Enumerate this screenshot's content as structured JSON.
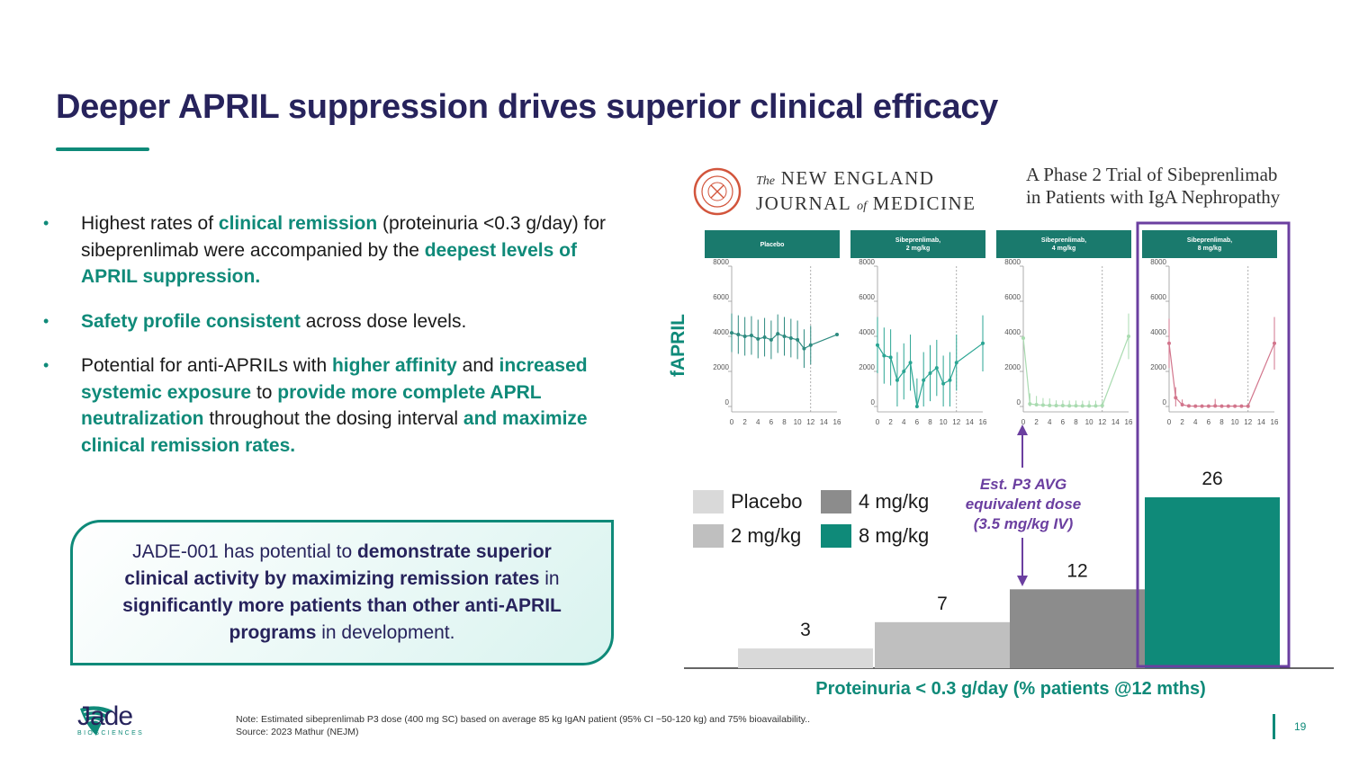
{
  "slide": {
    "title": "Deeper APRIL suppression drives superior clinical efficacy",
    "page_number": "19"
  },
  "bullets": [
    [
      {
        "t": "Highest rates of ",
        "hl": false
      },
      {
        "t": "clinical remission",
        "hl": true
      },
      {
        "t": " (proteinuria <0.3 g/day) for sibeprenlimab were accompanied by the ",
        "hl": false
      },
      {
        "t": "deepest levels of APRIL suppression.",
        "hl": true
      }
    ],
    [
      {
        "t": "Safety profile consistent",
        "hl": true
      },
      {
        "t": " across dose levels.",
        "hl": false
      }
    ],
    [
      {
        "t": "Potential for anti-APRILs with ",
        "hl": false
      },
      {
        "t": "higher affinity",
        "hl": true
      },
      {
        "t": " and ",
        "hl": false
      },
      {
        "t": "increased systemic exposure",
        "hl": true
      },
      {
        "t": " to ",
        "hl": false
      },
      {
        "t": "provide more complete APRL neutralization",
        "hl": true
      },
      {
        "t": " throughout the dosing interval ",
        "hl": false
      },
      {
        "t": "and maximize clinical remission rates.",
        "hl": true
      }
    ]
  ],
  "callout": [
    {
      "t": "JADE-001 has potential to ",
      "b": false
    },
    {
      "t": "demonstrate superior clinical activity by maximizing remission rates",
      "b": true
    },
    {
      "t": " in ",
      "b": false
    },
    {
      "t": "significantly more patients than other anti-APRIL programs",
      "b": true
    },
    {
      "t": " in development.",
      "b": false
    }
  ],
  "nejm": {
    "line1_prefix": "The",
    "line1": "NEW ENGLAND",
    "line2a": "JOURNAL",
    "line2_of": "of",
    "line2b": "MEDICINE",
    "trial_line1": "A Phase 2 Trial of Sibeprenlimab",
    "trial_line2": "in Patients with IgA Nephropathy"
  },
  "fapril_label": "fAPRIL",
  "arrow_label": [
    "Est. P3 AVG",
    "equivalent dose",
    "(3.5 mg/kg IV)"
  ],
  "footer": {
    "note_line1": "Note: Estimated sibeprenlimab P3 dose (400 mg SC) based on average 85 kg IgAN patient (95% CI ~50-120 kg) and 75% bioavailability..",
    "note_line2": "Source: 2023 Mathur (NEJM)",
    "logo_word": "Jade",
    "logo_sub": "BIOSCIENCES"
  },
  "colors": {
    "navy": "#27235c",
    "teal": "#0f8a79",
    "purple": "#6b3fa0",
    "placebo": "#d9d9d9",
    "dose2": "#bfbfbf",
    "dose4": "#8c8c8c",
    "dose8": "#0f8a79"
  },
  "chart_data": [
    {
      "type": "line",
      "panels": [
        {
          "name": "Placebo",
          "color": "#2e8b80",
          "x": [
            0,
            1,
            2,
            3,
            4,
            5,
            6,
            7,
            8,
            9,
            10,
            11,
            12,
            16
          ],
          "y": [
            4200,
            4100,
            4000,
            4050,
            3850,
            3950,
            3800,
            4150,
            4000,
            3900,
            3800,
            3300,
            3500,
            4100
          ],
          "err": [
            1100,
            1100,
            1100,
            1100,
            1100,
            1100,
            1100,
            1100,
            1100,
            1100,
            1100,
            1100,
            1100,
            0
          ]
        },
        {
          "name": "Sibeprenlimab, 2 mg/kg",
          "color": "#2aa593",
          "x": [
            0,
            1,
            2,
            3,
            4,
            5,
            6,
            7,
            8,
            9,
            10,
            11,
            12,
            16
          ],
          "y": [
            3500,
            2900,
            2800,
            1500,
            2000,
            2500,
            0,
            1500,
            1900,
            2200,
            1300,
            1500,
            2500,
            3600
          ],
          "err": [
            1600,
            1600,
            1600,
            1600,
            1600,
            1600,
            1600,
            1600,
            1600,
            1600,
            1600,
            1600,
            1600,
            1600
          ]
        },
        {
          "name": "Sibeprenlimab, 4 mg/kg",
          "color": "#a9dbb0",
          "x": [
            0,
            1,
            2,
            3,
            4,
            5,
            6,
            7,
            8,
            9,
            10,
            11,
            12,
            16
          ],
          "y": [
            3900,
            150,
            100,
            80,
            60,
            50,
            50,
            40,
            40,
            30,
            30,
            30,
            50,
            4000
          ],
          "err": [
            0,
            600,
            500,
            400,
            400,
            300,
            300,
            300,
            300,
            300,
            300,
            300,
            300,
            1300
          ]
        },
        {
          "name": "Sibeprenlimab, 8 mg/kg",
          "color": "#d2758c",
          "x": [
            0,
            1,
            2,
            3,
            4,
            5,
            6,
            7,
            8,
            9,
            10,
            11,
            12,
            16
          ],
          "y": [
            3600,
            500,
            100,
            30,
            20,
            20,
            20,
            30,
            20,
            20,
            20,
            20,
            20,
            3600
          ],
          "err": [
            1400,
            600,
            300,
            0,
            0,
            0,
            0,
            400,
            0,
            0,
            0,
            0,
            0,
            1500
          ]
        }
      ],
      "yticks": [
        0,
        2000,
        4000,
        6000,
        8000
      ],
      "xticks": [
        0,
        2,
        4,
        6,
        8,
        10,
        12,
        14,
        16
      ],
      "ylim": [
        0,
        8000
      ],
      "xlim": [
        0,
        16
      ],
      "ylabel": "fAPRIL",
      "vline_at": 12
    },
    {
      "type": "bar",
      "categories": [
        "Placebo",
        "2 mg/kg",
        "4 mg/kg",
        "8 mg/kg"
      ],
      "values": [
        3,
        7,
        12,
        26
      ],
      "xlabel": "Proteinuria < 0.3 g/day (% patients @12 mths)",
      "ylim": [
        0,
        30
      ],
      "legend": [
        "Placebo",
        "4 mg/kg",
        "2 mg/kg",
        "8 mg/kg"
      ]
    }
  ]
}
